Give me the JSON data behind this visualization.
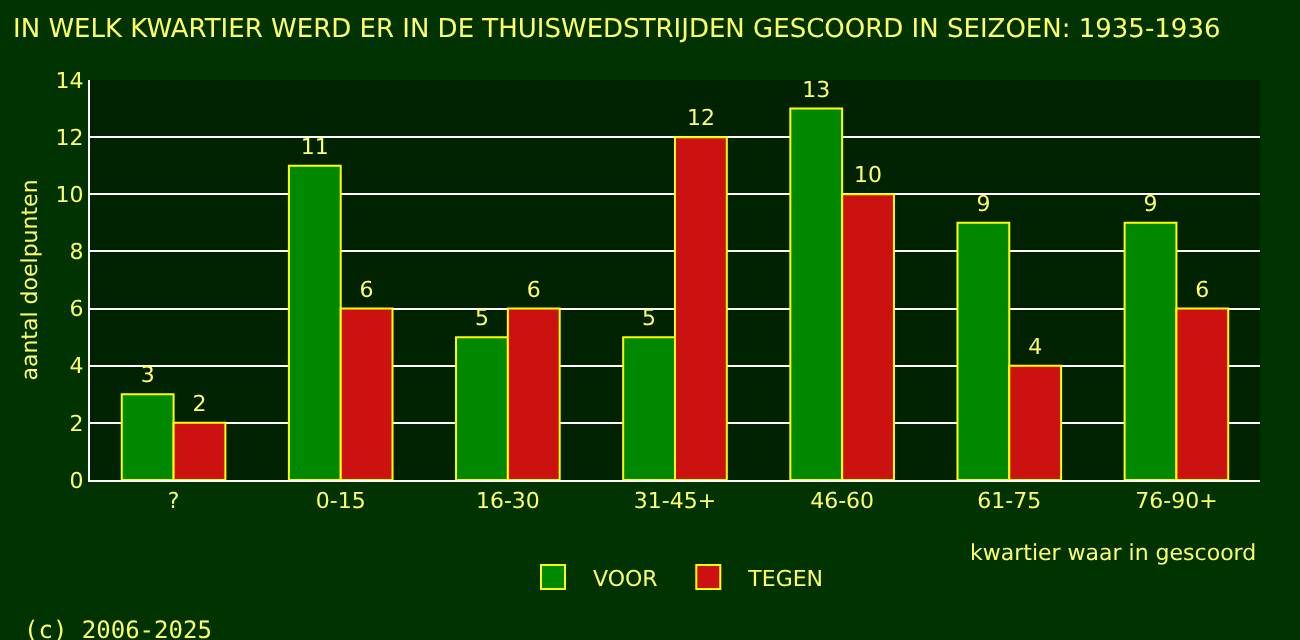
{
  "chart_data": {
    "type": "bar",
    "title": "IN WELK KWARTIER WERD ER IN DE THUISWEDSTRIJDEN GESCOORD IN SEIZOEN: 1935-1936",
    "xlabel": "kwartier waar in gescoord",
    "ylabel": "aantal doelpunten",
    "categories": [
      "?",
      "0-15",
      "16-30",
      "31-45+",
      "46-60",
      "61-75",
      "76-90+"
    ],
    "series": [
      {
        "name": "VOOR",
        "color": "#008800",
        "values": [
          3,
          11,
          5,
          5,
          13,
          9,
          9
        ]
      },
      {
        "name": "TEGEN",
        "color": "#cc1111",
        "values": [
          2,
          6,
          6,
          12,
          10,
          4,
          6
        ]
      }
    ],
    "ylim": [
      0,
      14
    ],
    "yticks": [
      0,
      2,
      4,
      6,
      8,
      10,
      12,
      14
    ],
    "grid": "y",
    "legend": "bottom",
    "data_labels": true,
    "annotations": [
      "(c) 2006-2025"
    ]
  }
}
